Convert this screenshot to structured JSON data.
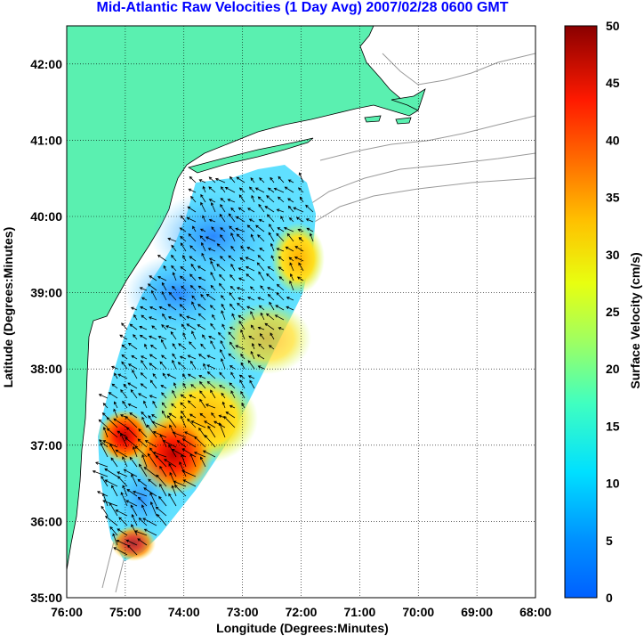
{
  "title": "Mid-Atlantic Raw Velocities (1 Day Avg) 2007/02/28 0600 GMT",
  "x_axis": {
    "label": "Longitude (Degrees:Minutes)",
    "ticks": [
      "76:00",
      "75:00",
      "74:00",
      "73:00",
      "72:00",
      "71:00",
      "70:00",
      "69:00",
      "68:00"
    ]
  },
  "y_axis": {
    "label": "Latitude (Degrees:Minutes)",
    "ticks": [
      "42:00",
      "41:00",
      "40:00",
      "39:00",
      "38:00",
      "37:00",
      "36:00",
      "35:00"
    ]
  },
  "colorbar": {
    "label": "Surface Velocity (cm/s)",
    "ticks": [
      "50",
      "45",
      "40",
      "35",
      "30",
      "25",
      "20",
      "15",
      "10",
      "5",
      "0"
    ],
    "range": [
      0,
      50
    ],
    "colormap": "jet"
  },
  "colors": {
    "title": "#0000ff",
    "land": "#5af0b0",
    "grid": "#000000",
    "bathymetry": "#9a9a9a"
  },
  "map": {
    "lon_range": [
      -76,
      -68
    ],
    "lat_range": [
      35,
      42.5
    ],
    "grid": "dotted"
  }
}
